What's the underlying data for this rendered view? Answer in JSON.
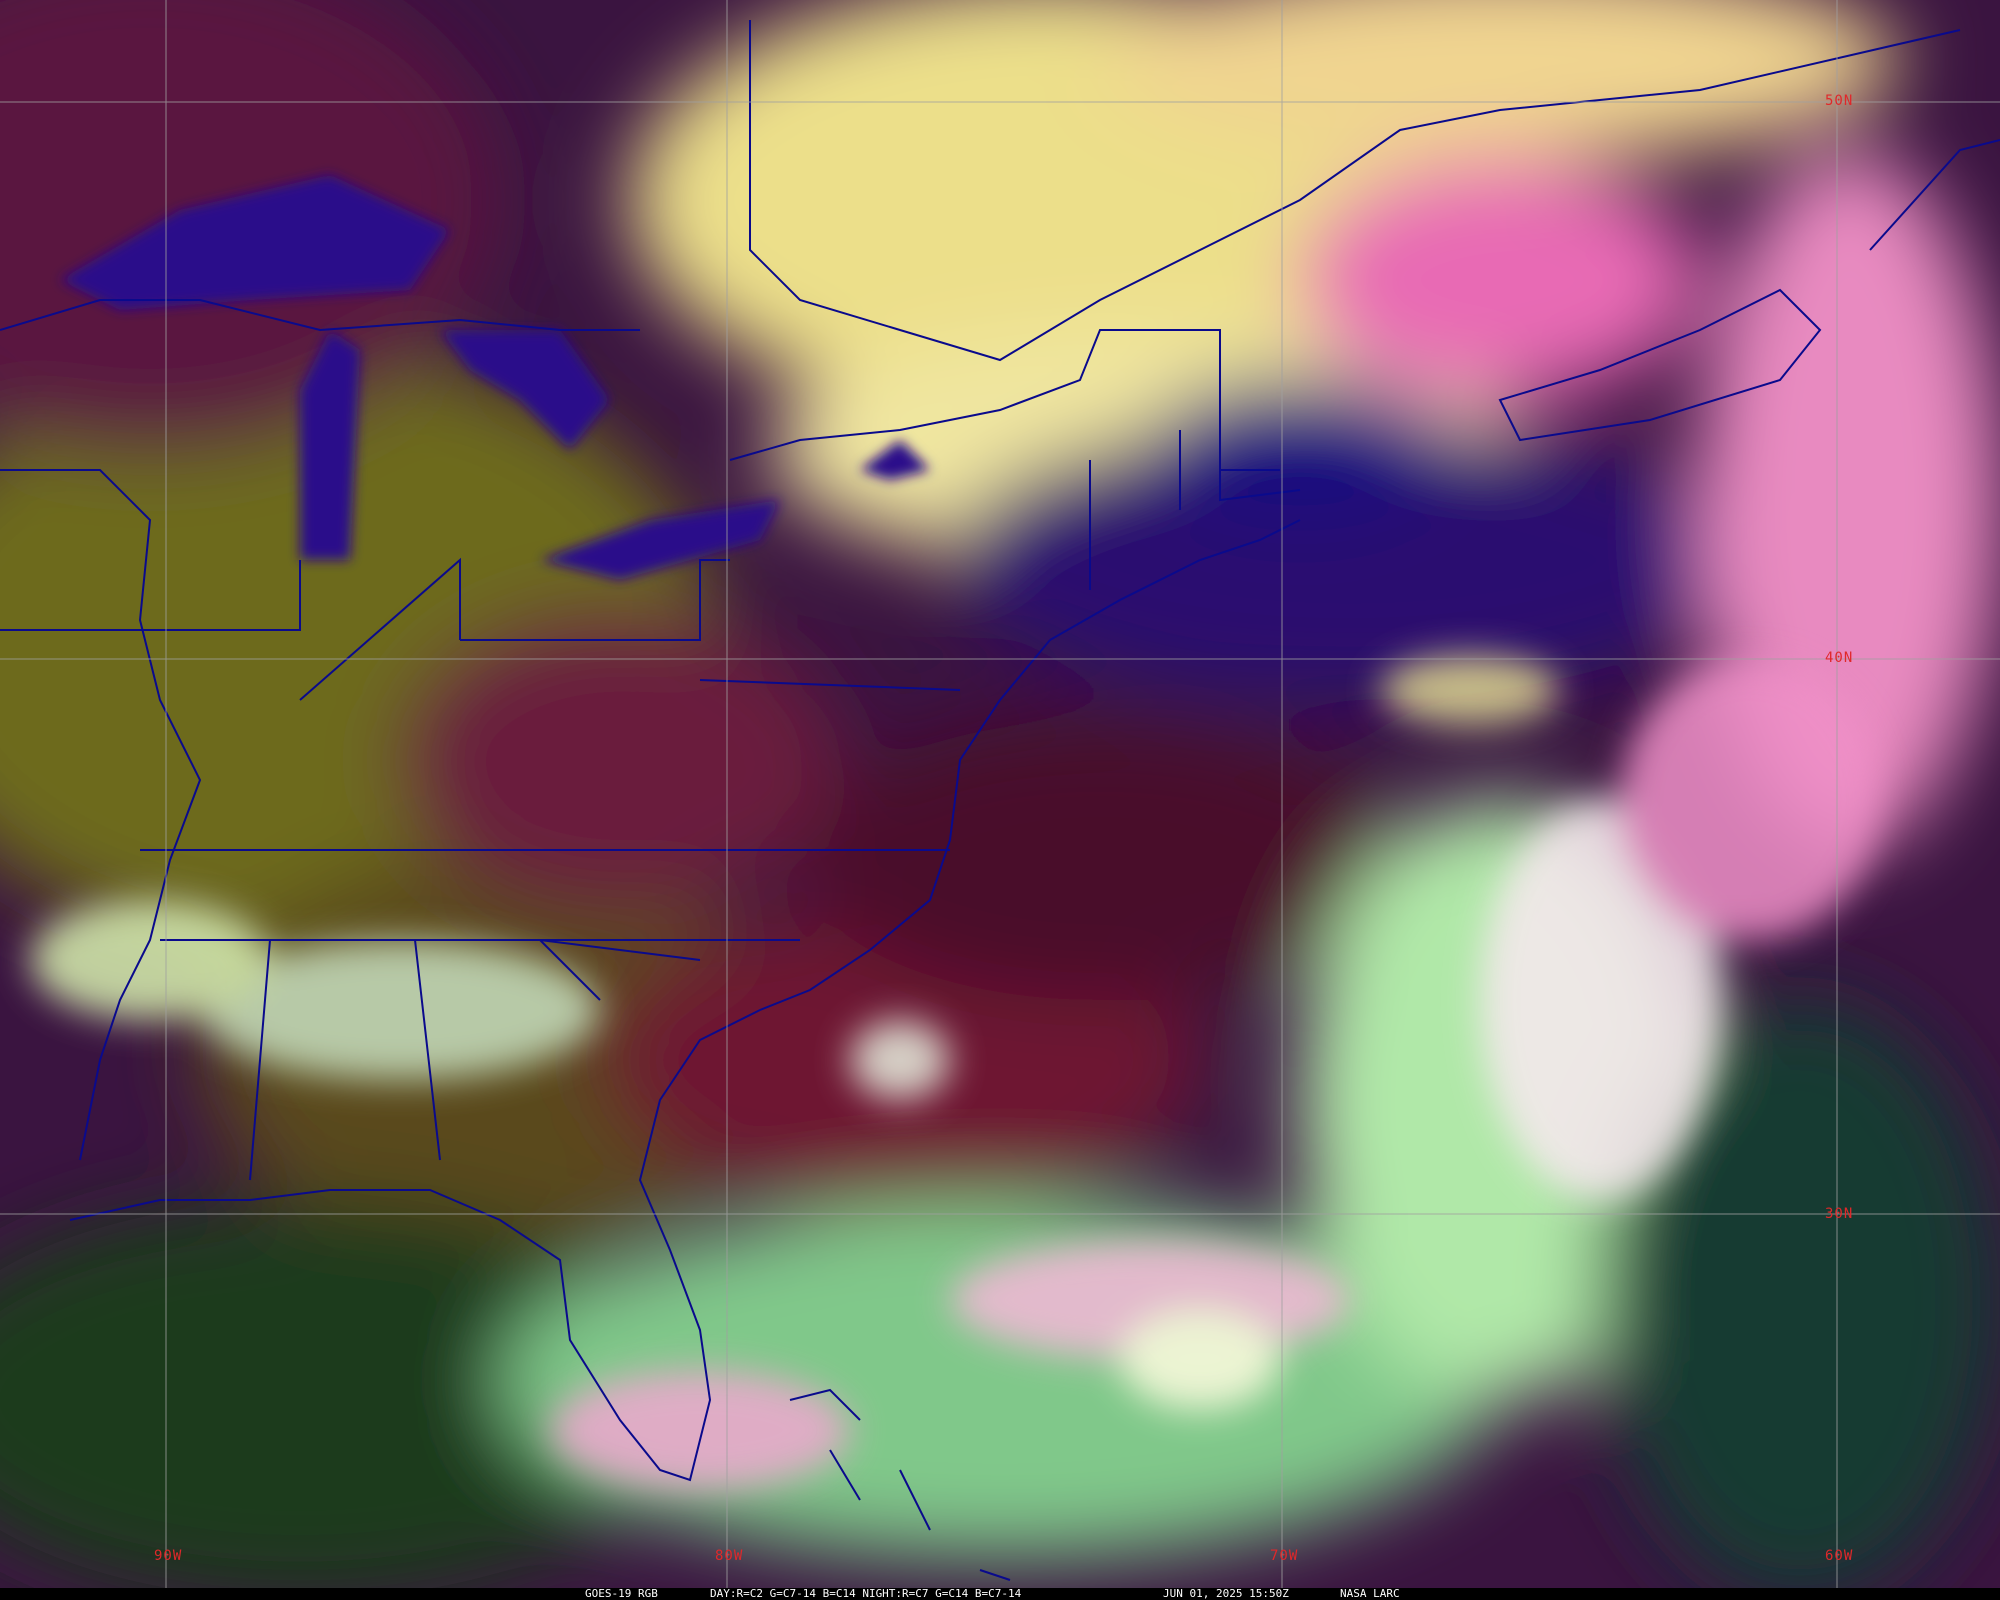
{
  "image": {
    "satellite": "GOES-19",
    "product": "GOES-19 RGB",
    "recipe": "DAY:R=C2 G=C7-14 B=C14 NIGHT:R=C7 G=C14 B=C7-14",
    "datetime": "JUN 01, 2025 15:50Z",
    "credit": "NASA LARC"
  },
  "grid": {
    "longitude_labels": [
      "90W",
      "80W",
      "70W",
      "60W"
    ],
    "latitude_labels": [
      "50N",
      "40N",
      "30N"
    ],
    "label_color": "#e0282a",
    "grid_color": "#a0a0a0",
    "border_color": "#0a0a8c"
  }
}
